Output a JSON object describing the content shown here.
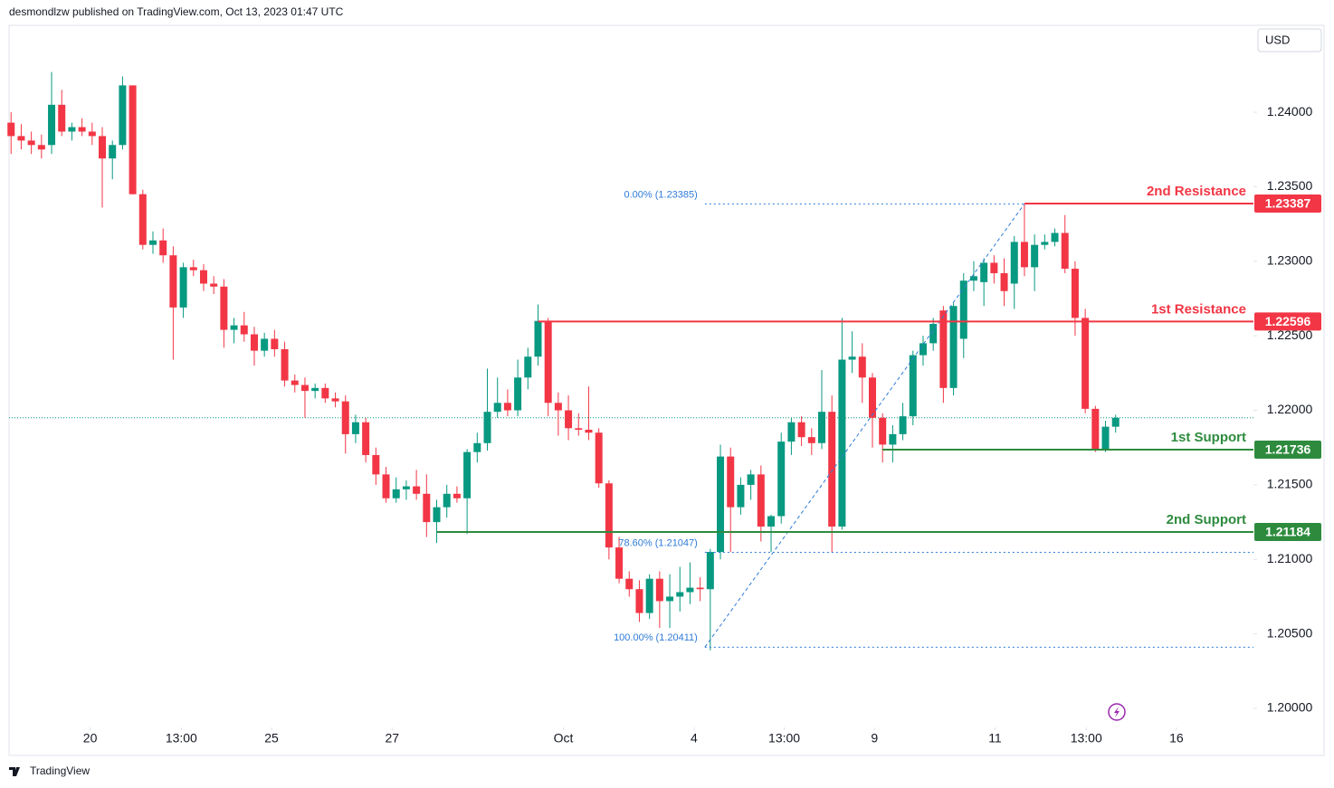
{
  "header": {
    "publisher": "desmondlzw published on TradingView.com, Oct 13, 2023 01:47 UTC"
  },
  "currency": "USD",
  "footer": "TradingView",
  "chart_data": {
    "type": "candlestick",
    "up_color": "#089981",
    "down_color": "#f23645",
    "open": [
      1.2393,
      1.2384,
      1.2381,
      1.2378,
      1.2378,
      1.2405,
      1.2387,
      1.239,
      1.2387,
      1.2384,
      1.2369,
      1.2378,
      1.2418,
      1.2345,
      1.2311,
      1.2314,
      1.2304,
      1.2269,
      1.2296,
      1.2294,
      1.2285,
      1.2283,
      1.2254,
      1.2257,
      1.2251,
      1.224,
      1.2248,
      1.2241,
      1.222,
      1.2217,
      1.2213,
      1.2215,
      1.2208,
      1.2206,
      1.2184,
      1.2192,
      1.217,
      1.2157,
      1.2141,
      1.2147,
      1.2149,
      1.2144,
      1.2125,
      1.2135,
      1.2144,
      1.2141,
      1.2172,
      1.2178,
      1.2199,
      1.2205,
      1.22,
      1.2222,
      1.2236,
      1.226,
      1.2205,
      1.22,
      1.2188,
      1.2187,
      1.2185,
      1.2151,
      1.2108,
      1.2087,
      1.208,
      1.2064,
      1.2087,
      1.2072,
      1.2075,
      1.2078,
      1.2081,
      1.208,
      1.2105,
      1.2169,
      1.2135,
      1.215,
      1.2157,
      1.2122,
      1.2129,
      1.2179,
      1.2192,
      1.2182,
      1.2178,
      1.2199,
      1.2122,
      1.2234,
      1.2236,
      1.2222,
      1.2195,
      1.2177,
      1.2184,
      1.2196,
      1.2237,
      1.2245,
      1.2267,
      1.2215,
      1.2248,
      1.2287,
      1.2286,
      1.2299,
      1.2292,
      1.2285,
      1.2313,
      1.2296,
      1.2311,
      1.2313,
      1.2319,
      1.2295,
      1.2262,
      1.2201,
      1.2174,
      1.2189
    ],
    "high": [
      1.24,
      1.2392,
      1.2387,
      1.2385,
      1.2427,
      1.2415,
      1.2393,
      1.2396,
      1.2393,
      1.239,
      1.2381,
      1.2424,
      1.2418,
      1.2348,
      1.232,
      1.2322,
      1.231,
      1.2299,
      1.2301,
      1.2298,
      1.229,
      1.2288,
      1.2262,
      1.2266,
      1.2256,
      1.2252,
      1.2254,
      1.2246,
      1.2224,
      1.2222,
      1.2218,
      1.2218,
      1.2212,
      1.221,
      1.2197,
      1.2195,
      1.2175,
      1.2162,
      1.2155,
      1.2153,
      1.216,
      1.2157,
      1.214,
      1.215,
      1.2149,
      1.2174,
      1.2185,
      1.2228,
      1.2222,
      1.2214,
      1.2234,
      1.2242,
      1.2271,
      1.2262,
      1.2212,
      1.221,
      1.2198,
      1.2216,
      1.2188,
      1.2153,
      1.2115,
      1.2092,
      1.2086,
      1.209,
      1.2092,
      1.209,
      1.2095,
      1.2098,
      1.2088,
      1.2107,
      1.2177,
      1.2175,
      1.2155,
      1.216,
      1.2163,
      1.213,
      1.2185,
      1.2195,
      1.2196,
      1.2188,
      1.2227,
      1.221,
      1.2262,
      1.2253,
      1.2245,
      1.2225,
      1.2198,
      1.219,
      1.2205,
      1.224,
      1.225,
      1.2262,
      1.227,
      1.2272,
      1.2292,
      1.23,
      1.2302,
      1.2304,
      1.2302,
      1.2317,
      1.2338,
      1.2318,
      1.2318,
      1.2322,
      1.2331,
      1.23,
      1.2268,
      1.2203,
      1.2193,
      1.2197
    ],
    "low": [
      1.2372,
      1.2375,
      1.2372,
      1.2369,
      1.2372,
      1.2384,
      1.2381,
      1.2384,
      1.2378,
      1.2336,
      1.2355,
      1.2375,
      1.2345,
      1.2308,
      1.2305,
      1.2299,
      1.2234,
      1.2262,
      1.229,
      1.228,
      1.2278,
      1.2242,
      1.2245,
      1.2246,
      1.223,
      1.2236,
      1.2236,
      1.2216,
      1.2212,
      1.2195,
      1.2208,
      1.2205,
      1.2202,
      1.2171,
      1.2178,
      1.2165,
      1.215,
      1.2138,
      1.2138,
      1.214,
      1.214,
      1.2115,
      1.2111,
      1.2128,
      1.2138,
      1.2117,
      1.2165,
      1.2173,
      1.2195,
      1.2196,
      1.2196,
      1.2214,
      1.223,
      1.2196,
      1.2183,
      1.218,
      1.2183,
      1.218,
      1.2148,
      1.21,
      1.2084,
      1.2075,
      1.2058,
      1.206,
      1.2054,
      1.2054,
      1.2065,
      1.207,
      1.2072,
      1.2039,
      1.21,
      1.2105,
      1.213,
      1.214,
      1.2112,
      1.2105,
      1.2124,
      1.217,
      1.2176,
      1.217,
      1.2174,
      1.2105,
      1.212,
      1.2225,
      1.2205,
      1.2175,
      1.2165,
      1.2165,
      1.218,
      1.219,
      1.223,
      1.224,
      1.2205,
      1.221,
      1.2235,
      1.228,
      1.227,
      1.2285,
      1.227,
      1.2268,
      1.229,
      1.228,
      1.2308,
      1.231,
      1.2292,
      1.225,
      1.2198,
      1.2172,
      1.2172,
      1.2185
    ],
    "close": [
      1.2384,
      1.2381,
      1.2378,
      1.2375,
      1.2405,
      1.2387,
      1.239,
      1.2387,
      1.2384,
      1.2369,
      1.2378,
      1.2418,
      1.2345,
      1.2311,
      1.2314,
      1.2304,
      1.2269,
      1.2296,
      1.2294,
      1.2285,
      1.2283,
      1.2254,
      1.2257,
      1.2251,
      1.224,
      1.2248,
      1.2241,
      1.222,
      1.2217,
      1.2213,
      1.2215,
      1.2208,
      1.2206,
      1.2184,
      1.2192,
      1.217,
      1.2157,
      1.2141,
      1.2147,
      1.2149,
      1.2144,
      1.2125,
      1.2135,
      1.2144,
      1.2141,
      1.2172,
      1.2178,
      1.2199,
      1.2205,
      1.22,
      1.2222,
      1.2236,
      1.226,
      1.2205,
      1.22,
      1.2188,
      1.2187,
      1.2185,
      1.2151,
      1.2108,
      1.2087,
      1.208,
      1.2064,
      1.2087,
      1.2072,
      1.2075,
      1.2078,
      1.2081,
      1.208,
      1.2105,
      1.2169,
      1.2135,
      1.215,
      1.2157,
      1.2122,
      1.2129,
      1.2179,
      1.2192,
      1.2182,
      1.2178,
      1.2199,
      1.2122,
      1.2234,
      1.2236,
      1.2222,
      1.2195,
      1.2177,
      1.2184,
      1.2196,
      1.2237,
      1.2245,
      1.2258,
      1.2215,
      1.227,
      1.2287,
      1.229,
      1.2299,
      1.2292,
      1.228,
      1.2313,
      1.2296,
      1.2311,
      1.2313,
      1.2319,
      1.2295,
      1.2262,
      1.2201,
      1.2174,
      1.2189,
      1.2195
    ],
    "xlim": [
      -0.2,
      122.6
    ],
    "xticks": [
      {
        "value": 7.8,
        "label": "20"
      },
      {
        "value": 16.8,
        "label": "13:00"
      },
      {
        "value": 25.7,
        "label": "25"
      },
      {
        "value": 37.6,
        "label": "27"
      },
      {
        "value": 54.5,
        "label": "Oct"
      },
      {
        "value": 67.4,
        "label": "4"
      },
      {
        "value": 76.3,
        "label": "13:00"
      },
      {
        "value": 85.2,
        "label": "9"
      },
      {
        "value": 97.1,
        "label": "11"
      },
      {
        "value": 106.1,
        "label": "13:00"
      },
      {
        "value": 115,
        "label": "16"
      }
    ],
    "ylim": [
      1.19897,
      1.24583
    ],
    "yticks": [
      {
        "value": 1.2,
        "label": "1.20000"
      },
      {
        "value": 1.205,
        "label": "1.20500"
      },
      {
        "value": 1.21,
        "label": "1.21000"
      },
      {
        "value": 1.215,
        "label": "1.21500"
      },
      {
        "value": 1.22,
        "label": "1.22000"
      },
      {
        "value": 1.225,
        "label": "1.22500"
      },
      {
        "value": 1.23,
        "label": "1.23000"
      },
      {
        "value": 1.235,
        "label": "1.23500"
      },
      {
        "value": 1.24,
        "label": "1.24000"
      }
    ],
    "levels": [
      {
        "name": "2nd Resistance",
        "value": 1.23387,
        "color": "#f23645",
        "from": 100
      },
      {
        "name": "1st Resistance",
        "value": 1.22596,
        "color": "#f23645",
        "from": 52
      },
      {
        "name": "1st Support",
        "value": 1.21736,
        "color": "#2e8b3e",
        "from": 86
      },
      {
        "name": "2nd Support",
        "value": 1.21184,
        "color": "#2e8b3e",
        "from": 42
      }
    ],
    "fib": {
      "color": "#2f7bd8",
      "from": 69,
      "to": 100,
      "levels": [
        {
          "label": "0.00% (1.23385)",
          "value": 1.23385
        },
        {
          "label": "78.60% (1.21047)",
          "value": 1.21047
        },
        {
          "label": "100.00% (1.20411)",
          "value": 1.20411
        }
      ]
    }
  }
}
